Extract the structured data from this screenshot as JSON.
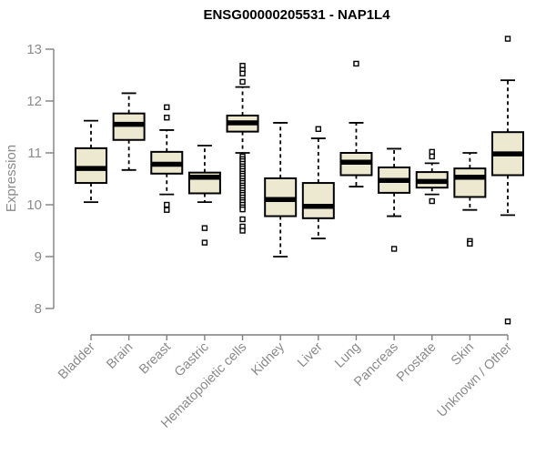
{
  "colors": {
    "background": "#ffffff",
    "box_fill": "#ede9d1",
    "box_stroke": "#000000",
    "median": "#000000",
    "whisker": "#000000",
    "outlier_fill": "#ffffff",
    "axis": "#7f7f7f",
    "tick_label": "#8a8a8a",
    "title": "#000000"
  },
  "chart_data": {
    "type": "boxplot",
    "title": "ENSG00000205531 - NAP1L4",
    "ylabel": "Expression",
    "xlabel": "",
    "ylim": [
      8,
      13
    ],
    "yticks": [
      8,
      9,
      10,
      11,
      12,
      13
    ],
    "grid": false,
    "legend": "none",
    "x_label_rotation_deg": 45,
    "categories": [
      "Bladder",
      "Brain",
      "Breast",
      "Gastric",
      "Hematopoietic cells",
      "Kidney",
      "Liver",
      "Lung",
      "Pancreas",
      "Prostate",
      "Skin",
      "Unknown / Other"
    ],
    "series": [
      {
        "name": "Bladder",
        "whisker_low": 10.05,
        "q1": 10.42,
        "median": 10.7,
        "q3": 11.09,
        "whisker_high": 11.62,
        "outliers": []
      },
      {
        "name": "Brain",
        "whisker_low": 10.67,
        "q1": 11.25,
        "median": 11.55,
        "q3": 11.76,
        "whisker_high": 12.15,
        "outliers": []
      },
      {
        "name": "Breast",
        "whisker_low": 10.2,
        "q1": 10.6,
        "median": 10.78,
        "q3": 11.02,
        "whisker_high": 11.44,
        "outliers": [
          11.88,
          11.68,
          10.0,
          9.9
        ]
      },
      {
        "name": "Gastric",
        "whisker_low": 10.05,
        "q1": 10.22,
        "median": 10.53,
        "q3": 10.62,
        "whisker_high": 11.14,
        "outliers": [
          9.55,
          9.27
        ]
      },
      {
        "name": "Hematopoietic cells",
        "whisker_low": 11.0,
        "q1": 11.41,
        "median": 11.58,
        "q3": 11.72,
        "whisker_high": 12.27,
        "outliers": [
          12.68,
          12.6,
          12.53,
          12.37,
          10.93,
          10.88,
          10.84,
          10.79,
          10.74,
          10.7,
          10.65,
          10.6,
          10.56,
          10.51,
          10.46,
          10.42,
          10.37,
          10.33,
          10.28,
          10.23,
          10.19,
          10.14,
          10.09,
          10.05,
          10.0,
          9.95,
          9.91,
          9.72,
          9.58,
          9.5
        ]
      },
      {
        "name": "Kidney",
        "whisker_low": 9.0,
        "q1": 9.78,
        "median": 10.1,
        "q3": 10.51,
        "whisker_high": 11.58,
        "outliers": []
      },
      {
        "name": "Liver",
        "whisker_low": 9.35,
        "q1": 9.74,
        "median": 9.97,
        "q3": 10.42,
        "whisker_high": 11.28,
        "outliers": [
          11.46
        ]
      },
      {
        "name": "Lung",
        "whisker_low": 10.35,
        "q1": 10.57,
        "median": 10.82,
        "q3": 11.0,
        "whisker_high": 11.58,
        "outliers": [
          12.72
        ]
      },
      {
        "name": "Pancreas",
        "whisker_low": 9.78,
        "q1": 10.23,
        "median": 10.47,
        "q3": 10.72,
        "whisker_high": 11.08,
        "outliers": [
          9.15
        ]
      },
      {
        "name": "Prostate",
        "whisker_low": 10.2,
        "q1": 10.33,
        "median": 10.45,
        "q3": 10.63,
        "whisker_high": 10.8,
        "outliers": [
          11.02,
          10.93,
          10.07
        ]
      },
      {
        "name": "Skin",
        "whisker_low": 9.9,
        "q1": 10.15,
        "median": 10.53,
        "q3": 10.7,
        "whisker_high": 11.0,
        "outliers": [
          9.3,
          9.25
        ]
      },
      {
        "name": "Unknown / Other",
        "whisker_low": 9.8,
        "q1": 10.57,
        "median": 10.98,
        "q3": 11.4,
        "whisker_high": 12.4,
        "outliers": [
          13.2,
          7.75
        ]
      }
    ]
  }
}
